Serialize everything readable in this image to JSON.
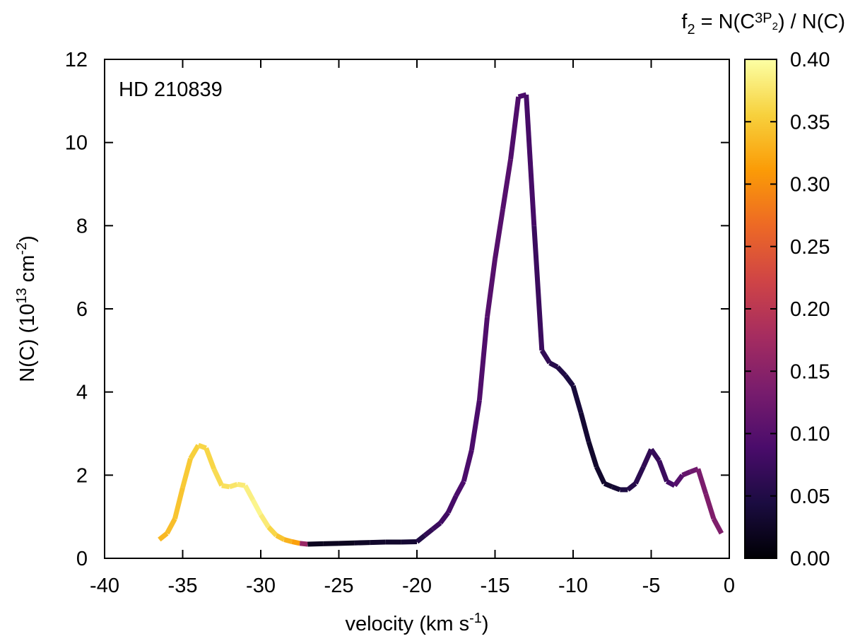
{
  "chart_data": {
    "type": "line",
    "title": "",
    "annotation": "HD 210839",
    "xlabel": {
      "main": "velocity (km s",
      "sup": "-1",
      "tail": ")"
    },
    "ylabel": {
      "main": "N(C) (10",
      "sup": "13",
      "mid": " cm",
      "sup2": "-2",
      "tail": ")"
    },
    "xlim": [
      -40,
      0
    ],
    "ylim": [
      0,
      12
    ],
    "x_ticks": [
      -40,
      -35,
      -30,
      -25,
      -20,
      -15,
      -10,
      -5,
      0
    ],
    "y_ticks": [
      0,
      2,
      4,
      6,
      8,
      10,
      12
    ],
    "grid": false,
    "colorbar": {
      "label": {
        "f": "f",
        "f_sub": "2",
        "eq": " = N(C",
        "sup": "3",
        "p": "P",
        "p_sub": "2",
        "tail": ") / N(C)"
      },
      "range": [
        0.0,
        0.4
      ],
      "ticks": [
        "0.00",
        "0.05",
        "0.10",
        "0.15",
        "0.20",
        "0.25",
        "0.30",
        "0.35",
        "0.40"
      ],
      "colors": [
        "#000004",
        "#1b0c41",
        "#4a0c6b",
        "#781c6d",
        "#a52c60",
        "#cf4446",
        "#ed6925",
        "#fb9b06",
        "#f7d13d",
        "#fcffa4"
      ]
    },
    "series": [
      {
        "x": [
          -36.5,
          -36.0,
          -35.5,
          -35.0,
          -34.5,
          -34.0,
          -33.5,
          -33.0,
          -32.5,
          -32.0,
          -31.5,
          -31.0,
          -30.5,
          -30.0,
          -29.5,
          -29.0,
          -28.5,
          -28.0,
          -27.5,
          -27.0,
          -26.0,
          -25.0,
          -24.0,
          -23.0,
          -22.0,
          -21.0,
          -20.0,
          -19.5,
          -19.0,
          -18.5,
          -18.0,
          -17.5,
          -17.0,
          -16.5,
          -16.0,
          -15.5,
          -15.0,
          -14.5,
          -14.0,
          -13.5,
          -13.0,
          -12.5,
          -12.0,
          -11.5,
          -11.0,
          -10.5,
          -10.0,
          -9.5,
          -9.0,
          -8.5,
          -8.0,
          -7.5,
          -7.0,
          -6.5,
          -6.0,
          -5.5,
          -5.0,
          -4.5,
          -4.0,
          -3.5,
          -3.0,
          -2.5,
          -2.0,
          -1.5,
          -1.0,
          -0.5
        ],
        "y": [
          0.45,
          0.6,
          0.95,
          1.7,
          2.4,
          2.72,
          2.65,
          2.15,
          1.75,
          1.72,
          1.78,
          1.75,
          1.4,
          1.05,
          0.75,
          0.55,
          0.45,
          0.4,
          0.36,
          0.34,
          0.35,
          0.36,
          0.37,
          0.38,
          0.39,
          0.39,
          0.4,
          0.55,
          0.7,
          0.85,
          1.1,
          1.5,
          1.85,
          2.6,
          3.8,
          5.8,
          7.2,
          8.4,
          9.6,
          11.1,
          11.15,
          8.0,
          5.0,
          4.7,
          4.6,
          4.4,
          4.15,
          3.5,
          2.8,
          2.2,
          1.8,
          1.72,
          1.65,
          1.65,
          1.8,
          2.2,
          2.62,
          2.35,
          1.85,
          1.75,
          2.0,
          2.08,
          2.15,
          1.55,
          0.95,
          0.6
        ],
        "f2": [
          0.33,
          0.34,
          0.34,
          0.35,
          0.35,
          0.36,
          0.36,
          0.36,
          0.37,
          0.37,
          0.38,
          0.38,
          0.39,
          0.39,
          0.37,
          0.35,
          0.34,
          0.32,
          0.31,
          0.02,
          0.02,
          0.02,
          0.02,
          0.03,
          0.03,
          0.03,
          0.04,
          0.06,
          0.07,
          0.08,
          0.08,
          0.09,
          0.09,
          0.09,
          0.09,
          0.1,
          0.1,
          0.1,
          0.1,
          0.09,
          0.09,
          0.08,
          0.07,
          0.06,
          0.05,
          0.05,
          0.04,
          0.04,
          0.03,
          0.03,
          0.03,
          0.03,
          0.04,
          0.05,
          0.06,
          0.06,
          0.07,
          0.07,
          0.08,
          0.09,
          0.11,
          0.12,
          0.13,
          0.14,
          0.14,
          0.14
        ]
      }
    ]
  }
}
